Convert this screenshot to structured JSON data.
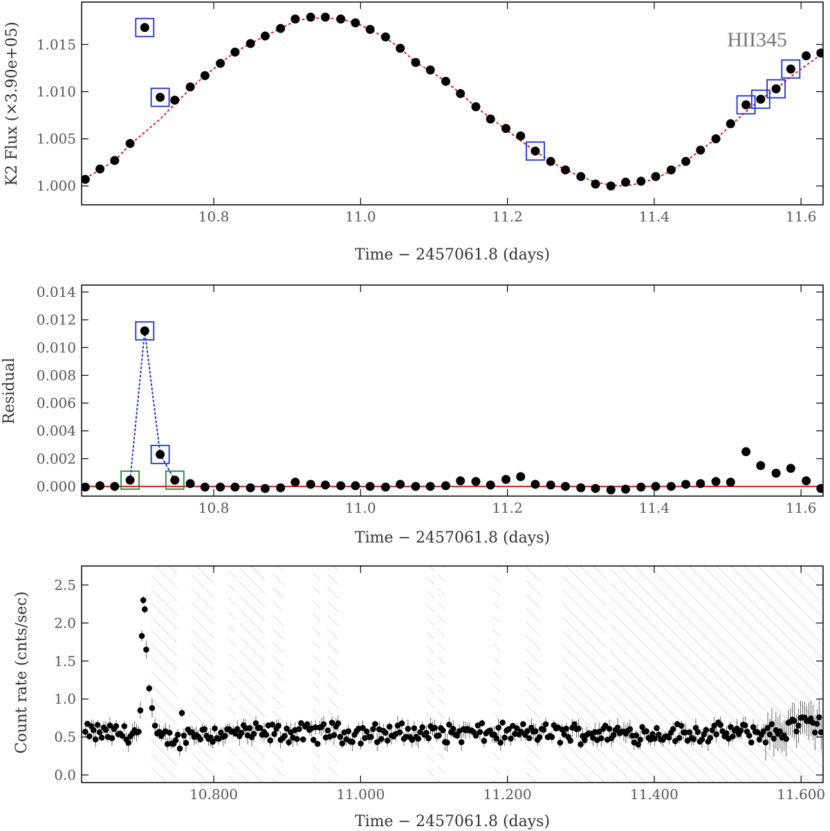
{
  "figure": {
    "star_label": "HII345",
    "colors": {
      "points": "#000000",
      "model": "#e8141c",
      "zero_line": "#e8141c",
      "flare_box": "#1f2fd0",
      "flare_line": "#1f2fd0",
      "preflare_box": "#1e8a2a",
      "hatch": "#bdbdbd"
    }
  },
  "chart_data": [
    {
      "type": "scatter",
      "panel": "k2_flux",
      "xlabel": "Time − 2457061.8 (days)",
      "ylabel": "K2 Flux (×3.90e+05)",
      "xlim": [
        10.62,
        11.63
      ],
      "ylim": [
        0.998,
        1.0195
      ],
      "xticks": [
        10.8,
        11.0,
        11.2,
        11.4,
        11.6
      ],
      "xtick_labels": [
        "10.8",
        "11.0",
        "11.2",
        "11.4",
        "11.6"
      ],
      "yticks": [
        1.0,
        1.005,
        1.01,
        1.015
      ],
      "ytick_labels": [
        "1.000",
        "1.005",
        "1.010",
        "1.015"
      ],
      "series": [
        {
          "role": "data",
          "x": [
            10.625,
            10.645,
            10.665,
            10.686,
            10.706,
            10.727,
            10.747,
            10.768,
            10.788,
            10.809,
            10.829,
            10.85,
            10.87,
            10.891,
            10.911,
            10.932,
            10.952,
            10.973,
            10.993,
            11.013,
            11.034,
            11.054,
            11.075,
            11.095,
            11.116,
            11.136,
            11.157,
            11.177,
            11.198,
            11.218,
            11.238,
            11.259,
            11.279,
            11.3,
            11.32,
            11.341,
            11.361,
            11.382,
            11.402,
            11.423,
            11.443,
            11.463,
            11.484,
            11.504,
            11.525,
            11.545,
            11.566,
            11.586,
            11.607,
            11.627
          ],
          "y": [
            1.0007,
            1.0018,
            1.0027,
            1.0045,
            1.0168,
            1.0094,
            1.0091,
            1.0105,
            1.0117,
            1.013,
            1.0142,
            1.0151,
            1.0159,
            1.0167,
            1.0177,
            1.0179,
            1.0179,
            1.0177,
            1.0173,
            1.0166,
            1.0158,
            1.0146,
            1.0131,
            1.0123,
            1.0111,
            1.0098,
            1.0084,
            1.0071,
            1.0061,
            1.0053,
            1.0037,
            1.0026,
            1.0017,
            1.001,
            1.0002,
            1.0,
            1.0004,
            1.0005,
            1.001,
            1.0017,
            1.0026,
            1.0038,
            1.005,
            1.0066,
            1.0086,
            1.0092,
            1.0103,
            1.0124,
            1.0138,
            1.0141
          ]
        },
        {
          "role": "model",
          "style": "dotted",
          "x": [
            10.62,
            10.645,
            10.665,
            10.686,
            10.706,
            10.727,
            10.747,
            10.768,
            10.788,
            10.809,
            10.829,
            10.85,
            10.87,
            10.891,
            10.911,
            10.932,
            10.952,
            10.973,
            10.993,
            11.013,
            11.034,
            11.054,
            11.075,
            11.095,
            11.116,
            11.136,
            11.157,
            11.177,
            11.198,
            11.218,
            11.238,
            11.259,
            11.279,
            11.3,
            11.32,
            11.341,
            11.361,
            11.382,
            11.402,
            11.423,
            11.443,
            11.463,
            11.484,
            11.504,
            11.525,
            11.545,
            11.566,
            11.586,
            11.607,
            11.63
          ],
          "y": [
            1.0006,
            1.0017,
            1.0027,
            1.0044,
            1.0057,
            1.0071,
            1.0087,
            1.0103,
            1.0117,
            1.013,
            1.0142,
            1.0151,
            1.0159,
            1.0167,
            1.0175,
            1.0178,
            1.0178,
            1.0177,
            1.0173,
            1.0166,
            1.0157,
            1.0146,
            1.0131,
            1.0122,
            1.0111,
            1.0098,
            1.0084,
            1.0072,
            1.006,
            1.0048,
            1.0037,
            1.0026,
            1.0017,
            1.001,
            1.0004,
            1.0001,
            1.0,
            1.0003,
            1.0008,
            1.0016,
            1.0026,
            1.0038,
            1.005,
            1.0064,
            1.0079,
            1.0092,
            1.0103,
            1.0116,
            1.0128,
            1.0141
          ]
        }
      ],
      "flare_marked_indices": [
        4,
        5,
        30,
        44,
        45,
        46,
        47
      ]
    },
    {
      "type": "scatter",
      "panel": "residual",
      "xlabel": "Time − 2457061.8 (days)",
      "ylabel": "Residual",
      "xlim": [
        10.62,
        11.63
      ],
      "ylim": [
        -0.0007,
        0.0145
      ],
      "xticks": [
        10.8,
        11.0,
        11.2,
        11.4,
        11.6
      ],
      "xtick_labels": [
        "10.8",
        "11.0",
        "11.2",
        "11.4",
        "11.6"
      ],
      "yticks": [
        0.0,
        0.002,
        0.004,
        0.006,
        0.008,
        0.01,
        0.012,
        0.014
      ],
      "ytick_labels": [
        "0.000",
        "0.002",
        "0.004",
        "0.006",
        "0.008",
        "0.010",
        "0.012",
        "0.014"
      ],
      "series": [
        {
          "role": "data",
          "x": [
            10.625,
            10.645,
            10.665,
            10.686,
            10.706,
            10.727,
            10.747,
            10.768,
            10.788,
            10.809,
            10.829,
            10.85,
            10.87,
            10.891,
            10.911,
            10.932,
            10.952,
            10.973,
            10.993,
            11.013,
            11.034,
            11.054,
            11.075,
            11.095,
            11.116,
            11.136,
            11.157,
            11.177,
            11.198,
            11.218,
            11.238,
            11.259,
            11.279,
            11.3,
            11.32,
            11.341,
            11.361,
            11.382,
            11.402,
            11.423,
            11.443,
            11.463,
            11.484,
            11.504,
            11.525,
            11.545,
            11.566,
            11.586,
            11.607,
            11.627
          ],
          "y": [
            -5e-05,
            5e-05,
            0.0,
            0.00045,
            0.0112,
            0.0023,
            0.00045,
            0.0002,
            -5e-05,
            -5e-05,
            -5e-05,
            -0.0001,
            -0.00015,
            -0.0001,
            0.0003,
            0.00015,
            0.0001,
            5e-05,
            5e-05,
            0.0,
            -5e-05,
            0.00015,
            0.0,
            0.0,
            5e-05,
            0.0004,
            0.00035,
            0.0001,
            0.0005,
            0.0007,
            0.00015,
            0.0001,
            0.0,
            -0.0001,
            -0.00015,
            -0.00025,
            -0.0002,
            -5e-05,
            0.0,
            0.0,
            0.00015,
            0.0002,
            0.00035,
            0.0003,
            0.0025,
            0.0015,
            0.00095,
            0.0013,
            0.0004,
            -0.00015
          ]
        }
      ],
      "zero_line": 0.0,
      "flare_marked_indices": [
        4,
        5
      ],
      "preflare_marked_indices": [
        3,
        6
      ]
    },
    {
      "type": "scatter",
      "panel": "xray_count_rate",
      "xlabel": "Time − 2457061.8 (days)",
      "ylabel": "Count rate (cnts/sec)",
      "xlim": [
        10.62,
        11.63
      ],
      "ylim": [
        -0.1,
        2.75
      ],
      "xticks": [
        10.8,
        11.0,
        11.2,
        11.4,
        11.6
      ],
      "xtick_labels": [
        "10.800",
        "11.000",
        "11.200",
        "11.400",
        "11.600"
      ],
      "yticks": [
        0.0,
        0.5,
        1.0,
        1.5,
        2.0,
        2.5
      ],
      "ytick_labels": [
        "0.0",
        "0.5",
        "1.0",
        "1.5",
        "2.0",
        "2.5"
      ],
      "flare_points": {
        "x": [
          10.7,
          10.702,
          10.704,
          10.706,
          10.708,
          10.712,
          10.716,
          10.72
        ],
        "y": [
          0.85,
          1.83,
          2.3,
          2.18,
          1.65,
          1.14,
          0.88,
          0.65
        ]
      },
      "quiescent_level": 0.55,
      "hatched_intervals": [
        [
          10.715,
          10.75
        ],
        [
          10.77,
          10.8
        ],
        [
          10.82,
          10.83
        ],
        [
          10.835,
          10.87
        ],
        [
          10.88,
          10.895
        ],
        [
          10.935,
          10.945
        ],
        [
          10.955,
          10.97
        ],
        [
          11.09,
          11.1
        ],
        [
          11.105,
          11.115
        ],
        [
          11.18,
          11.19
        ],
        [
          11.225,
          11.245
        ],
        [
          11.275,
          11.335
        ],
        [
          11.34,
          11.63
        ]
      ]
    }
  ]
}
